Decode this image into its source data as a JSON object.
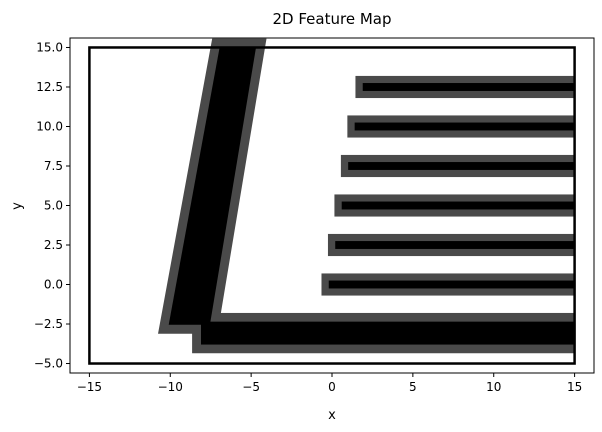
{
  "chart_data": {
    "type": "heatmap",
    "title": "2D Feature Map",
    "xlabel": "x",
    "ylabel": "y",
    "xlim": [
      -16.2,
      16.2
    ],
    "ylim": [
      -5.6,
      15.6
    ],
    "x_ticks": [
      -15,
      -10,
      -5,
      0,
      5,
      10,
      15
    ],
    "y_ticks": [
      -5.0,
      -2.5,
      0.0,
      2.5,
      5.0,
      7.5,
      10.0,
      12.5,
      15.0
    ],
    "x_tick_labels": [
      "−15",
      "−10",
      "−5",
      "0",
      "5",
      "10",
      "15"
    ],
    "y_tick_labels": [
      "−5.0",
      "−2.5",
      "0.0",
      "2.5",
      "5.0",
      "7.5",
      "10.0",
      "12.5",
      "15.0"
    ],
    "grid": false,
    "colors": {
      "core": "#000000",
      "halo": "#4a4a4a",
      "boundary": "#000000",
      "background": "#ffffff"
    },
    "boundary_rect": {
      "x": [
        -15,
        15
      ],
      "y": [
        -5,
        15
      ]
    },
    "features": [
      {
        "name": "slanted-beam",
        "core_polygon": [
          [
            -10.1,
            -2.55
          ],
          [
            -6.95,
            15
          ],
          [
            -4.7,
            15
          ],
          [
            -7.55,
            -2.55
          ]
        ],
        "halo_width": 0.55
      },
      {
        "name": "bottom-bar",
        "core_rect": {
          "x": [
            -8.1,
            15
          ],
          "y": [
            -3.8,
            -2.35
          ]
        },
        "halo_width": 0.55
      },
      {
        "name": "horizontal-bar-1",
        "core_rect": {
          "x": [
            -0.2,
            15
          ],
          "y": [
            -0.25,
            0.25
          ]
        },
        "halo_width": 0.45
      },
      {
        "name": "horizontal-bar-2",
        "core_rect": {
          "x": [
            0.2,
            15
          ],
          "y": [
            2.25,
            2.75
          ]
        },
        "halo_width": 0.45
      },
      {
        "name": "horizontal-bar-3",
        "core_rect": {
          "x": [
            0.6,
            15
          ],
          "y": [
            4.75,
            5.25
          ]
        },
        "halo_width": 0.45
      },
      {
        "name": "horizontal-bar-4",
        "core_rect": {
          "x": [
            1.0,
            15
          ],
          "y": [
            7.25,
            7.75
          ]
        },
        "halo_width": 0.45
      },
      {
        "name": "horizontal-bar-5",
        "core_rect": {
          "x": [
            1.4,
            15
          ],
          "y": [
            9.75,
            10.25
          ]
        },
        "halo_width": 0.45
      },
      {
        "name": "horizontal-bar-6",
        "core_rect": {
          "x": [
            1.9,
            15
          ],
          "y": [
            12.25,
            12.75
          ]
        },
        "halo_width": 0.45
      }
    ]
  }
}
